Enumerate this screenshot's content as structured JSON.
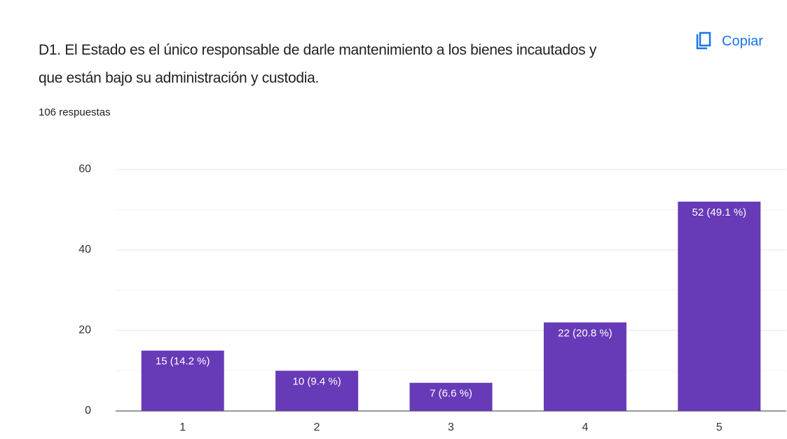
{
  "chart_data": {
    "type": "bar",
    "title": "D1. El Estado es el único responsable de darle mantenimiento a los bienes incautados y que están bajo su administración y custodia.",
    "subtitle": "106 respuestas",
    "action": "Copiar",
    "categories": [
      "1",
      "2",
      "3",
      "4",
      "5"
    ],
    "values": [
      15,
      10,
      7,
      22,
      52
    ],
    "value_labels": [
      "15 (14.2 %)",
      "10 (9.4 %)",
      "7 (6.6 %)",
      "22 (20.8 %)",
      "52 (49.1 %)"
    ],
    "color": "#673ab7",
    "ylim": [
      0,
      60
    ],
    "yticks": [
      0,
      20,
      40,
      60
    ],
    "minor_gridlines": [
      10,
      30,
      50
    ],
    "grid": true
  }
}
